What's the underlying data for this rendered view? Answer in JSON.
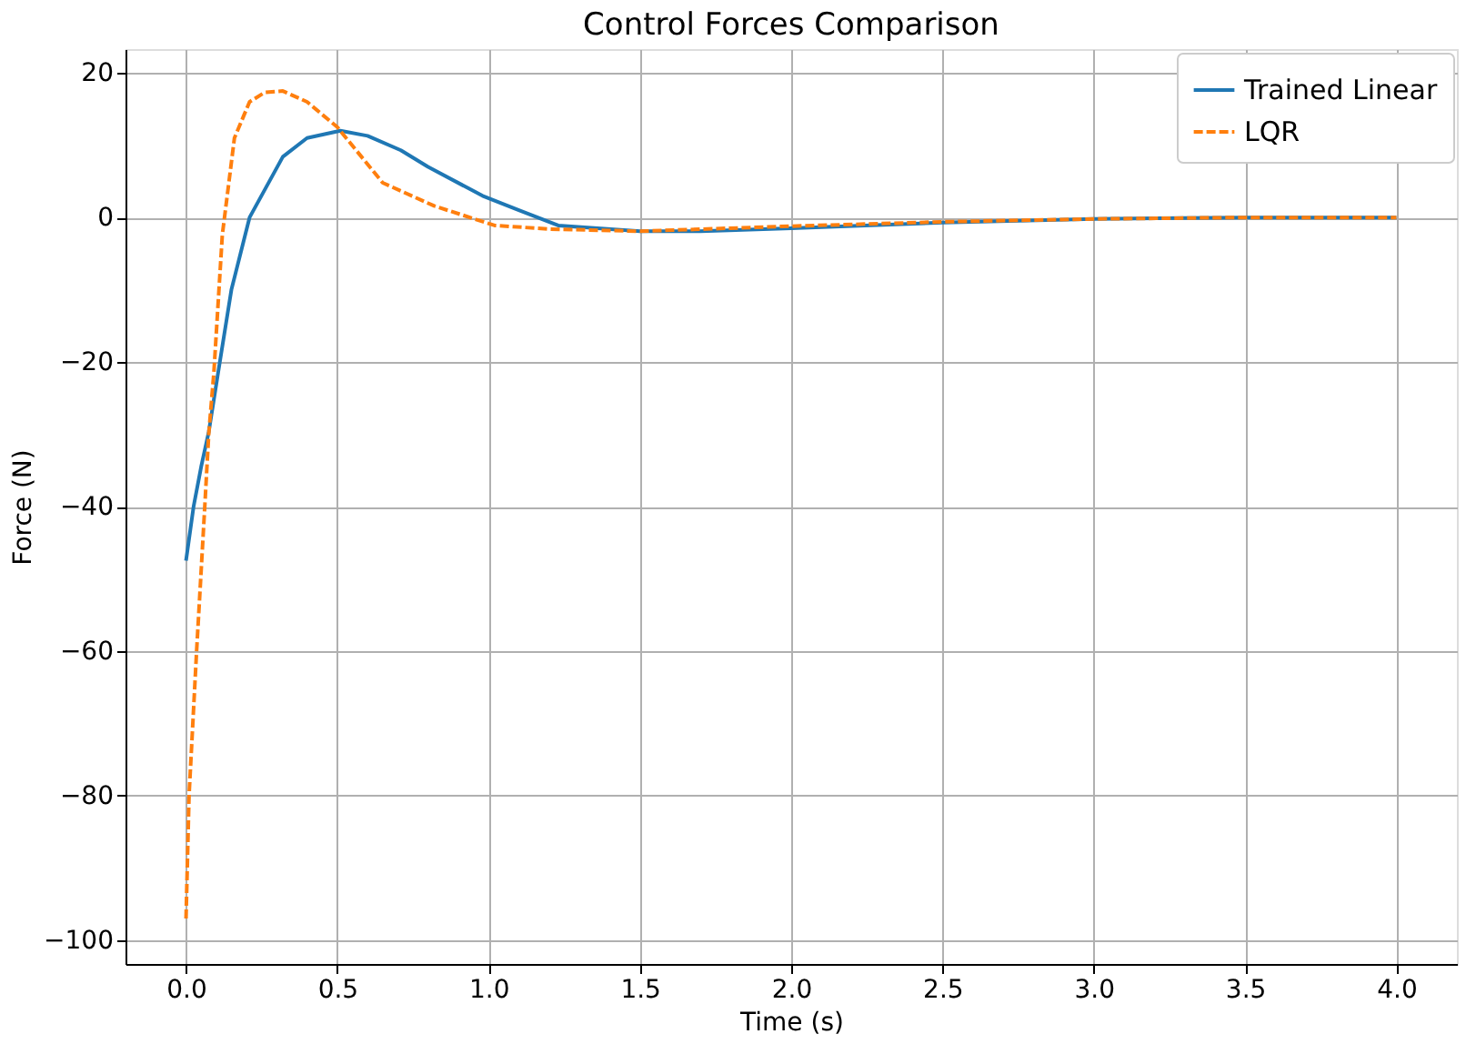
{
  "chart_data": {
    "type": "line",
    "title": "Control Forces Comparison",
    "xlabel": "Time (s)",
    "ylabel": "Force (N)",
    "xlim": [
      -0.2,
      4.2
    ],
    "ylim": [
      -103.3,
      23.3
    ],
    "xticks": [
      {
        "value": 0,
        "label": "0.0"
      },
      {
        "value": 0.5,
        "label": "0.5"
      },
      {
        "value": 1,
        "label": "1.0"
      },
      {
        "value": 1.5,
        "label": "1.5"
      },
      {
        "value": 2,
        "label": "2.0"
      },
      {
        "value": 2.5,
        "label": "2.5"
      },
      {
        "value": 3,
        "label": "3.0"
      },
      {
        "value": 3.5,
        "label": "3.5"
      },
      {
        "value": 4,
        "label": "4.0"
      }
    ],
    "yticks": [
      {
        "value": -100,
        "label": "−100"
      },
      {
        "value": -80,
        "label": "−80"
      },
      {
        "value": -60,
        "label": "−60"
      },
      {
        "value": -40,
        "label": "−40"
      },
      {
        "value": -20,
        "label": "−20"
      },
      0,
      20
    ],
    "grid": true,
    "legend": "top right",
    "marker": "none",
    "series": [
      {
        "name": "Trained Linear",
        "color": "#1f77b4",
        "line_style": "solid",
        "x": [
          0,
          0.025,
          0.05,
          0.075,
          0.106,
          0.15,
          0.21,
          0.32,
          0.4,
          0.51,
          0.6,
          0.71,
          0.8,
          0.98,
          1.1,
          1.23,
          1.5,
          1.7,
          2.0,
          2.5,
          3.0,
          3.5,
          4.0
        ],
        "values": [
          -47.5,
          -40,
          -34.5,
          -29.7,
          -21.5,
          -10,
          0,
          8.4,
          11,
          12,
          11.3,
          9.3,
          7,
          3,
          1,
          -1.1,
          -1.9,
          -1.9,
          -1.5,
          -0.7,
          -0.2,
          0,
          0
        ]
      },
      {
        "name": "LQR",
        "color": "#ff7f0e",
        "line_style": "dashed",
        "x": [
          0,
          0.01,
          0.035,
          0.062,
          0.075,
          0.092,
          0.12,
          0.16,
          0.21,
          0.26,
          0.32,
          0.4,
          0.5,
          0.65,
          0.82,
          1.02,
          1.2,
          1.5,
          2.0,
          2.5,
          3.0,
          3.5,
          4.0
        ],
        "values": [
          -97,
          -80,
          -60,
          -40,
          -30,
          -21.5,
          -2.4,
          11,
          16,
          17.3,
          17.5,
          16,
          12.5,
          4.8,
          1.6,
          -1.1,
          -1.6,
          -1.9,
          -1.2,
          -0.6,
          -0.2,
          0,
          0
        ]
      }
    ]
  }
}
